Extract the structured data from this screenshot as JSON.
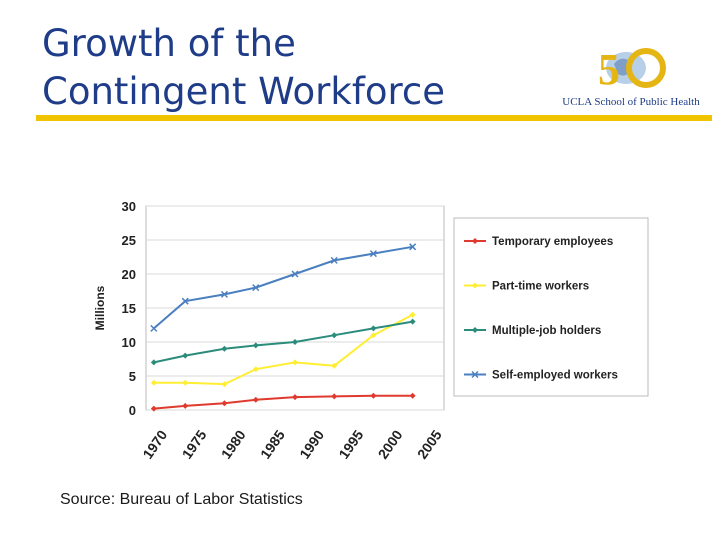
{
  "slide": {
    "title_line1": "Growth of the",
    "title_line2": "Contingent Workforce",
    "source": "Source:  Bureau of Labor Statistics",
    "logo_text": "UCLA School of Public Health",
    "accent_color": "#f0c400",
    "title_color": "#1f3c88"
  },
  "chart_data": {
    "type": "line",
    "ylabel": "Millions",
    "xlabel": "",
    "ylim": [
      0,
      30
    ],
    "yticks": [
      "0",
      "5",
      "10",
      "15",
      "20",
      "25",
      "30"
    ],
    "xticks": [
      "1970",
      "1975",
      "1980",
      "1985",
      "1990",
      "1995",
      "2000",
      "2005"
    ],
    "grid": true,
    "legend_position": "right",
    "x": [
      1971,
      1975,
      1980,
      1984,
      1989,
      1994,
      1999,
      2004
    ],
    "series": [
      {
        "name": "Temporary employees",
        "color": "#e03a2e",
        "marker": "diamond",
        "values": [
          0.2,
          0.6,
          1.0,
          1.5,
          1.9,
          2.0,
          2.1,
          2.1
        ]
      },
      {
        "name": "Part-time workers",
        "color": "#ffee33",
        "marker": "diamond",
        "values": [
          4.0,
          4.0,
          3.8,
          6.0,
          7.0,
          6.5,
          11.0,
          14.0
        ]
      },
      {
        "name": "Multiple-job holders",
        "color": "#2b8c7b",
        "marker": "diamond",
        "values": [
          7.0,
          8.0,
          9.0,
          9.5,
          10.0,
          11.0,
          12.0,
          13.0
        ]
      },
      {
        "name": "Self-employed workers",
        "color": "#4a7fc0",
        "marker": "x",
        "values": [
          12.0,
          16.0,
          17.0,
          18.0,
          20.0,
          22.0,
          23.0,
          24.0
        ]
      }
    ]
  }
}
